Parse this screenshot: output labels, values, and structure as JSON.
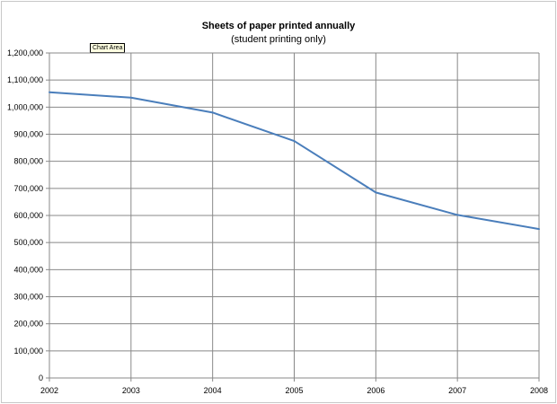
{
  "tooltip": "Chart Area",
  "chart_data": {
    "type": "line",
    "title": "Sheets of paper printed annually",
    "subtitle": "(student printing only)",
    "xlabel": "",
    "ylabel": "",
    "categories": [
      "2002",
      "2003",
      "2004",
      "2005",
      "2006",
      "2007",
      "2008"
    ],
    "series": [
      {
        "values": [
          1055000,
          1035000,
          980000,
          875000,
          685000,
          602000,
          550000
        ],
        "color": "#4a7ebb"
      }
    ],
    "ylim": [
      0,
      1200000
    ],
    "yticks": [
      "0",
      "100,000",
      "200,000",
      "300,000",
      "400,000",
      "500,000",
      "600,000",
      "700,000",
      "800,000",
      "900,000",
      "1,000,000",
      "1,100,000",
      "1,200,000"
    ],
    "grid": true,
    "legend": "none",
    "gridline_color": "#888888"
  }
}
